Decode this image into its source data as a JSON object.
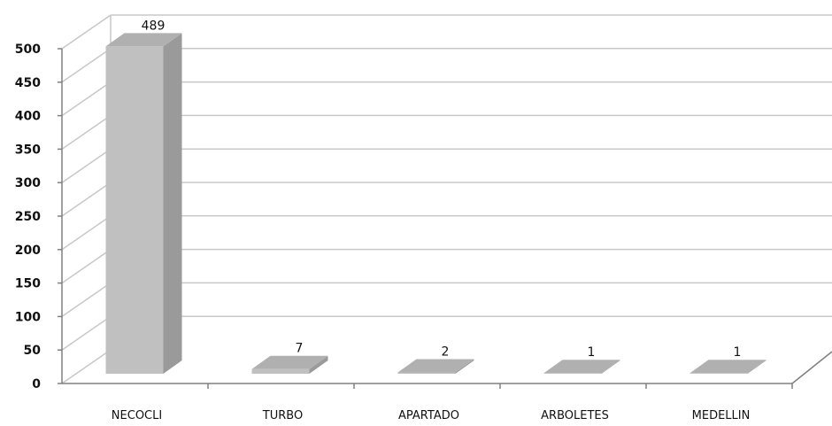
{
  "chart_data": {
    "type": "bar",
    "style": "3d-column",
    "categories": [
      "NECOCLI",
      "TURBO",
      "APARTADO",
      "ARBOLETES",
      "MEDELLIN"
    ],
    "values": [
      489,
      7,
      2,
      1,
      1
    ],
    "data_labels": [
      "489",
      "7",
      "2",
      "1",
      "1"
    ],
    "title": "",
    "xlabel": "",
    "ylabel": "",
    "ylim": [
      0,
      500
    ],
    "yticks": [
      0,
      50,
      100,
      150,
      200,
      250,
      300,
      350,
      400,
      450,
      500
    ],
    "grid": true,
    "legend": "none",
    "colors": {
      "bar_front": "#c0c0c0",
      "bar_side": "#9a9a9a",
      "bar_top": "#b0b0b0",
      "grid": "#c8c8c8",
      "axis": "#808080"
    }
  }
}
